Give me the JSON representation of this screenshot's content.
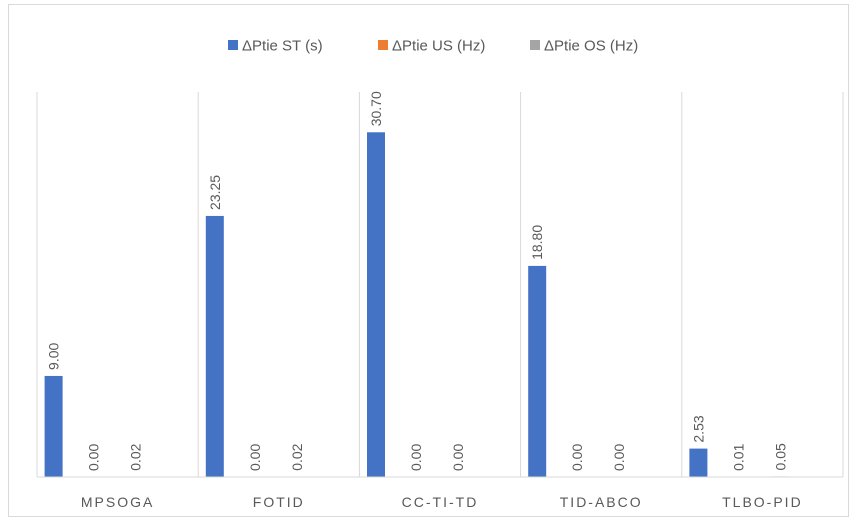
{
  "chart_data": {
    "type": "bar",
    "title": "",
    "xlabel": "",
    "ylabel": "",
    "ylim": [
      0,
      35
    ],
    "grid": "vertical category separators",
    "legend_position": "top",
    "categories": [
      "MPSOGA",
      "FOTID",
      "CC-TI-TD",
      "TID-ABCO",
      "TLBO-PID"
    ],
    "series": [
      {
        "name": "ΔPtie ST  (s)",
        "color": "#4472c4",
        "values": [
          9.0,
          23.25,
          30.7,
          18.8,
          2.53
        ],
        "labels": [
          "9.00",
          "23.25",
          "30.70",
          "18.80",
          "2.53"
        ]
      },
      {
        "name": "ΔPtie US (Hz)",
        "color": "#ed7d31",
        "values": [
          0.0,
          0.0,
          0.0,
          0.0,
          0.01
        ],
        "labels": [
          "0.00",
          "0.00",
          "0.00",
          "0.00",
          "0.01"
        ]
      },
      {
        "name": "ΔPtie OS (Hz)",
        "color": "#a5a5a5",
        "values": [
          0.02,
          0.02,
          0.0,
          0.0,
          0.05
        ],
        "labels": [
          "0.02",
          "0.02",
          "0.00",
          "0.00",
          "0.05"
        ]
      }
    ]
  }
}
